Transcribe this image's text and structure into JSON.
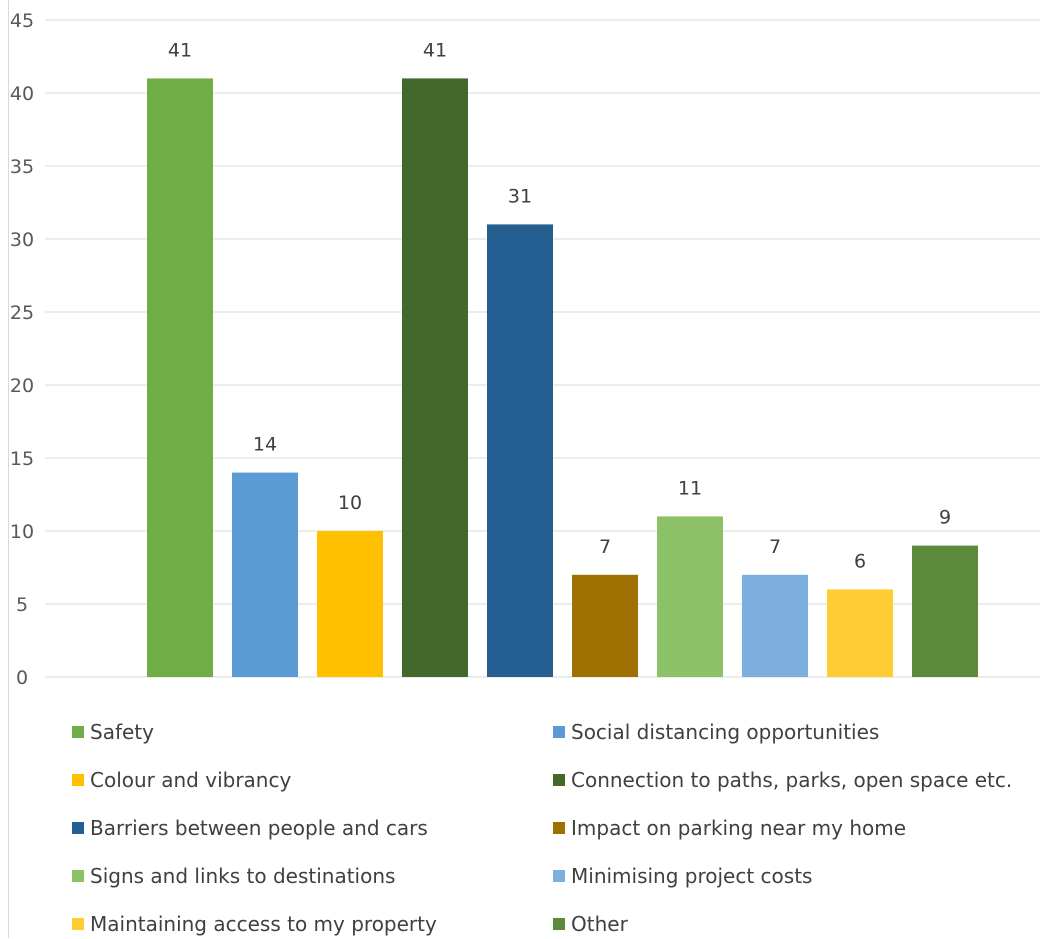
{
  "chart_data": {
    "type": "bar",
    "categories": [
      "Safety",
      "Social distancing opportunities",
      "Colour and vibrancy",
      "Connection to paths, parks, open space etc.",
      "Barriers between people and cars",
      "Impact on parking near my home",
      "Signs and links to destinations",
      "Minimising project costs",
      "Maintaining access to my property",
      "Other"
    ],
    "values": [
      41,
      14,
      10,
      41,
      31,
      7,
      11,
      7,
      6,
      9
    ],
    "colors": [
      "#70ad47",
      "#5b9bd5",
      "#ffc000",
      "#43682b",
      "#255e91",
      "#9e7102",
      "#8cc168",
      "#7cafdd",
      "#ffcd33",
      "#5b8b3a"
    ],
    "ylim": [
      0,
      45
    ],
    "yticks": [
      0,
      5,
      10,
      15,
      20,
      25,
      30,
      35,
      40,
      45
    ],
    "grid": true,
    "data_labels": true,
    "legend_position": "bottom",
    "title": "",
    "xlabel": "",
    "ylabel": ""
  }
}
